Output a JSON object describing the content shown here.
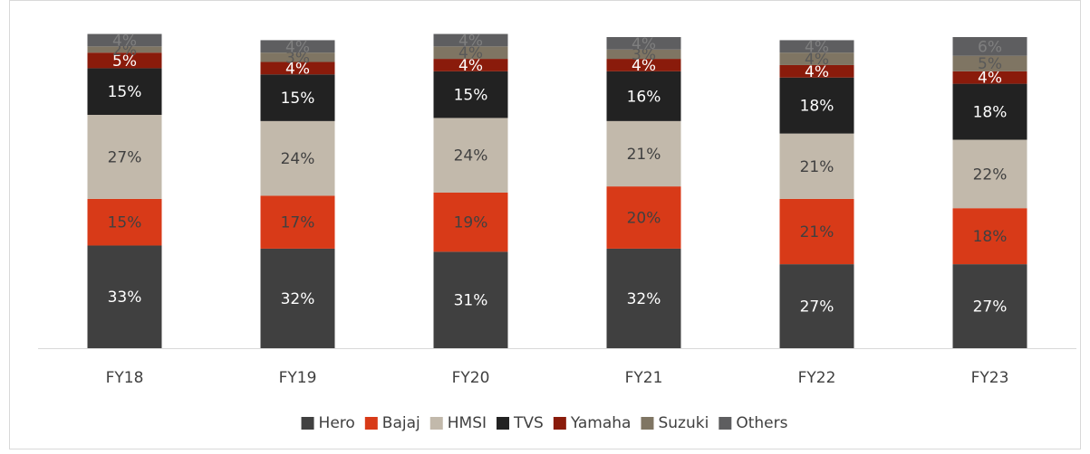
{
  "chart_data": {
    "type": "stacked_bar",
    "categories": [
      "FY18",
      "FY19",
      "FY20",
      "FY21",
      "FY22",
      "FY23"
    ],
    "ylim": [
      0,
      100
    ],
    "series": [
      {
        "name": "Hero",
        "color": "#404040",
        "values": [
          33,
          32,
          31,
          32,
          27,
          27
        ],
        "value_labels": [
          "33%",
          "32%",
          "31%",
          "32%",
          "27%",
          "27%"
        ]
      },
      {
        "name": "Bajaj",
        "color": "#d83a18",
        "values": [
          15,
          17,
          19,
          20,
          21,
          18
        ],
        "value_labels": [
          "15%",
          "17%",
          "19%",
          "20%",
          "21%",
          "18%"
        ]
      },
      {
        "name": "HMSI",
        "color": "#c2b9ab",
        "values": [
          27,
          24,
          24,
          21,
          21,
          22
        ],
        "value_labels": [
          "27%",
          "24%",
          "24%",
          "21%",
          "21%",
          "22%"
        ]
      },
      {
        "name": "TVS",
        "color": "#222222",
        "values": [
          15,
          15,
          15,
          16,
          18,
          18
        ],
        "value_labels": [
          "15%",
          "15%",
          "15%",
          "16%",
          "18%",
          "18%"
        ]
      },
      {
        "name": "Yamaha",
        "color": "#8a1b0b",
        "values": [
          5,
          4,
          4,
          4,
          4,
          4
        ],
        "value_labels": [
          "5%",
          "4%",
          "4%",
          "4%",
          "4%",
          "4%"
        ]
      },
      {
        "name": "Suzuki",
        "color": "#7f7563",
        "values": [
          2,
          3,
          4,
          3,
          4,
          5
        ],
        "value_labels": [
          "2%",
          "3%",
          "4%",
          "3%",
          "4%",
          "5%"
        ]
      },
      {
        "name": "Others",
        "color": "#5e5e60",
        "values": [
          4,
          4,
          4,
          4,
          4,
          6
        ],
        "value_labels": [
          "4%",
          "4%",
          "4%",
          "4%",
          "4%",
          "6%"
        ]
      }
    ]
  }
}
